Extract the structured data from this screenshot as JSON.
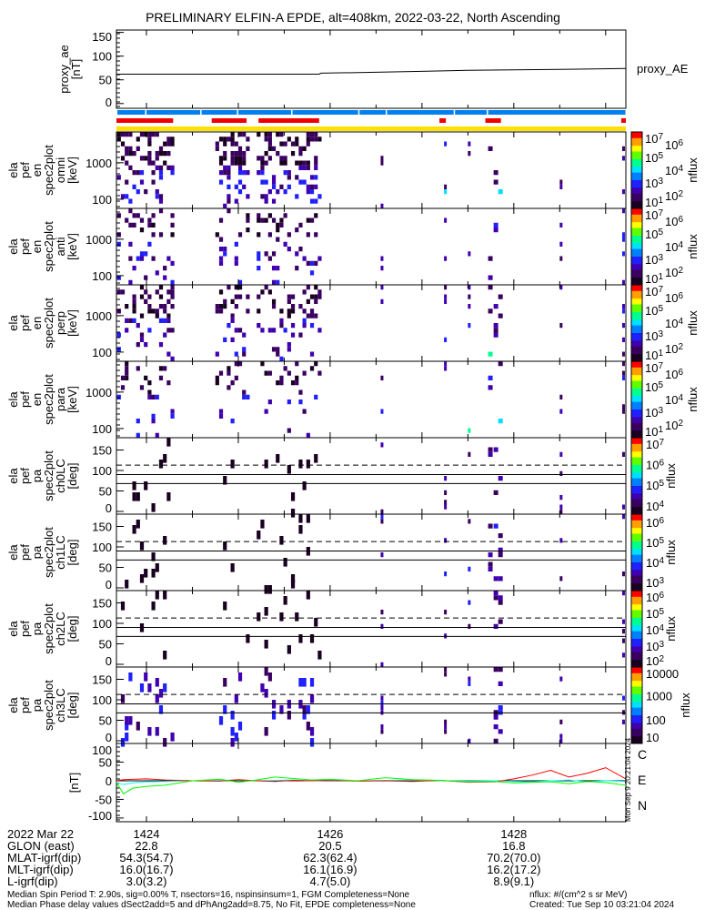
{
  "title": "PRELIMINARY ELFIN-A EPDE, alt=408km, 2022-03-22, North Ascending",
  "time_axis": {
    "t_start_min": 1423.673,
    "t_end_min": 1429.22,
    "labels": [
      "1424",
      "1426",
      "1428"
    ],
    "label_times": [
      1424,
      1426,
      1428
    ]
  },
  "chart_data": [
    {
      "type": "line",
      "name": "proxy_ae",
      "ylabel": "proxy_ae\n[nT]",
      "legend": "proxy_AE",
      "ylim": [
        -10,
        155
      ],
      "yticks": [
        "0",
        "50",
        "100",
        "150"
      ],
      "ytick_values": [
        0,
        50,
        100,
        150
      ],
      "x": [
        1423.673,
        1425.88,
        1425.9,
        1426.5,
        1427.0,
        1427.5,
        1428.0,
        1428.5,
        1429.22
      ],
      "y": [
        62,
        62,
        64,
        66,
        68,
        70,
        71,
        72,
        74
      ]
    },
    {
      "type": "bars",
      "name": "status_bars",
      "blue_gaps": [
        1423.99,
        1424.59,
        1424.99,
        1425.58,
        1426.31,
        1426.61,
        1427.35,
        1427.71
      ],
      "red_segments": [
        [
          1423.673,
          1424.29
        ],
        [
          1424.71,
          1425.09
        ],
        [
          1425.22,
          1425.88
        ],
        [
          1427.19,
          1427.26
        ],
        [
          1427.69,
          1427.86
        ],
        [
          1429.17,
          1429.22
        ]
      ],
      "yellow_segments": [
        [
          1423.673,
          1429.22
        ]
      ]
    },
    {
      "type": "heatmap",
      "name": "spec2plot omni",
      "ylabel": [
        "ela",
        "pef",
        "en",
        "spec2plot",
        "omni",
        "[keV]"
      ],
      "yscale": "log",
      "ylim": [
        56,
        7000
      ],
      "yticks": [
        "100",
        "1000"
      ],
      "ytick_values": [
        100,
        1000
      ],
      "colorbar": {
        "label": "nflux",
        "ticks": [
          "10^1",
          "10^2",
          "10^3",
          "10^4",
          "10^5",
          "10^6",
          "10^7"
        ],
        "range": [
          1,
          7
        ]
      },
      "seed": 11,
      "intensity": 1.0
    },
    {
      "type": "heatmap",
      "name": "spec2plot anti",
      "ylabel": [
        "ela",
        "pef",
        "en",
        "spec2plot",
        "anti",
        "[keV]"
      ],
      "yscale": "log",
      "ylim": [
        56,
        7000
      ],
      "yticks": [
        "100",
        "1000"
      ],
      "ytick_values": [
        100,
        1000
      ],
      "colorbar": {
        "label": "nflux",
        "ticks": [
          "10^1",
          "10^2",
          "10^3",
          "10^4",
          "10^5",
          "10^6",
          "10^7"
        ],
        "range": [
          1,
          7
        ]
      },
      "seed": 23,
      "intensity": 0.5
    },
    {
      "type": "heatmap",
      "name": "spec2plot perp",
      "ylabel": [
        "ela",
        "pef",
        "en",
        "spec2plot",
        "perp",
        "[keV]"
      ],
      "yscale": "log",
      "ylim": [
        56,
        7000
      ],
      "yticks": [
        "100",
        "1000"
      ],
      "ytick_values": [
        100,
        1000
      ],
      "colorbar": {
        "label": "nflux",
        "ticks": [
          "10^1",
          "10^2",
          "10^3",
          "10^4",
          "10^5",
          "10^6",
          "10^7"
        ],
        "range": [
          1,
          7
        ]
      },
      "seed": 37,
      "intensity": 0.8
    },
    {
      "type": "heatmap",
      "name": "spec2plot para",
      "ylabel": [
        "ela",
        "pef",
        "en",
        "spec2plot",
        "para",
        "[keV]"
      ],
      "yscale": "log",
      "ylim": [
        56,
        7000
      ],
      "yticks": [
        "100",
        "1000"
      ],
      "ytick_values": [
        100,
        1000
      ],
      "colorbar": {
        "label": "nflux",
        "ticks": [
          "10^1",
          "10^2",
          "10^3",
          "10^4",
          "10^5",
          "10^6",
          "10^7"
        ],
        "range": [
          1,
          7
        ]
      },
      "seed": 41,
      "intensity": 0.45
    },
    {
      "type": "heatmap",
      "name": "spec2plot ch0LC",
      "ylabel": [
        "ela",
        "pef",
        "pa",
        "spec2plot",
        "ch0LC",
        "[deg]"
      ],
      "yscale": "linear",
      "ylim": [
        0,
        180
      ],
      "yticks": [
        "0",
        "50",
        "100",
        "150"
      ],
      "ytick_values": [
        0,
        50,
        100,
        150
      ],
      "lines": {
        "dashed": 113,
        "solid": [
          90,
          68
        ]
      },
      "colorbar": {
        "label": "nflux",
        "ticks": [
          "10^4",
          "10^5",
          "10^6",
          "10^7"
        ],
        "range": [
          3.6,
          7.3
        ]
      },
      "seed": 53,
      "intensity": 0.3
    },
    {
      "type": "heatmap",
      "name": "spec2plot ch1LC",
      "ylabel": [
        "ela",
        "pef",
        "pa",
        "spec2plot",
        "ch1LC",
        "[deg]"
      ],
      "yscale": "linear",
      "ylim": [
        0,
        180
      ],
      "yticks": [
        "0",
        "50",
        "100",
        "150"
      ],
      "ytick_values": [
        0,
        50,
        100,
        150
      ],
      "lines": {
        "dashed": 113,
        "solid": [
          90,
          68
        ]
      },
      "colorbar": {
        "label": "nflux",
        "ticks": [
          "10^3",
          "10^4",
          "10^5",
          "10^6"
        ],
        "range": [
          2.6,
          6.4
        ]
      },
      "seed": 67,
      "intensity": 0.3
    },
    {
      "type": "heatmap",
      "name": "spec2plot ch2LC",
      "ylabel": [
        "ela",
        "pef",
        "pa",
        "spec2plot",
        "ch2LC",
        "[deg]"
      ],
      "yscale": "linear",
      "ylim": [
        0,
        180
      ],
      "yticks": [
        "0",
        "50",
        "100",
        "150"
      ],
      "ytick_values": [
        0,
        50,
        100,
        150
      ],
      "lines": {
        "dashed": 113,
        "solid": [
          90,
          68
        ]
      },
      "colorbar": {
        "label": "nflux",
        "ticks": [
          "10^2",
          "10^3",
          "10^4",
          "10^5",
          "10^6"
        ],
        "range": [
          1.7,
          6.4
        ]
      },
      "seed": 71,
      "intensity": 0.3
    },
    {
      "type": "heatmap",
      "name": "spec2plot ch3LC",
      "ylabel": [
        "ela",
        "pef",
        "pa",
        "spec2plot",
        "ch3LC",
        "[deg]"
      ],
      "yscale": "linear",
      "ylim": [
        0,
        180
      ],
      "yticks": [
        "0",
        "50",
        "100",
        "150"
      ],
      "ytick_values": [
        0,
        50,
        100,
        150
      ],
      "lines": {
        "dashed": 113,
        "solid": [
          90,
          68
        ]
      },
      "colorbar": {
        "label": "nflux",
        "ticks": [
          "10",
          "100",
          "1000",
          "10000"
        ],
        "range": [
          1,
          4.2
        ]
      },
      "seed": 83,
      "intensity": 1.0
    },
    {
      "type": "line",
      "name": "magnetic_field",
      "ylabel": "[nT]",
      "ylim": [
        -110,
        100
      ],
      "yticks": [
        "-100",
        "-50",
        "0",
        "50",
        "100"
      ],
      "ytick_values": [
        -100,
        -50,
        0,
        50,
        100
      ],
      "x": [
        1423.673,
        1423.75,
        1423.85,
        1424.0,
        1424.2,
        1424.5,
        1424.8,
        1425.0,
        1425.2,
        1425.4,
        1425.6,
        1425.8,
        1426.0,
        1426.3,
        1426.6,
        1426.9,
        1427.2,
        1427.5,
        1427.8,
        1428.0,
        1428.2,
        1428.4,
        1428.6,
        1428.8,
        1429.0,
        1429.22
      ],
      "series": [
        {
          "name": "C",
          "color": "#00ffff",
          "values": [
            -5,
            -10,
            -6,
            -3,
            -2,
            0,
            1,
            2,
            0,
            1,
            2,
            0,
            1,
            0,
            1,
            2,
            0,
            -1,
            0,
            -2,
            -3,
            0,
            2,
            -3,
            0,
            -2
          ]
        },
        {
          "name": "E",
          "color": "#ff0000",
          "values": [
            0,
            3,
            4,
            5,
            2,
            0,
            -1,
            3,
            0,
            -2,
            1,
            0,
            2,
            -1,
            0,
            -2,
            1,
            -4,
            -3,
            5,
            15,
            28,
            10,
            20,
            35,
            5
          ]
        },
        {
          "name": "N",
          "color": "#00ff00",
          "values": [
            -5,
            -35,
            -20,
            -15,
            -12,
            0,
            4,
            -4,
            2,
            10,
            6,
            2,
            4,
            0,
            8,
            3,
            1,
            -3,
            -2,
            -6,
            -4,
            -3,
            -8,
            -2,
            -5,
            -12
          ]
        }
      ]
    }
  ],
  "orbit_table": {
    "rows": [
      {
        "label": "2022 Mar 22",
        "values": [
          "1424",
          "1426",
          "1428"
        ]
      },
      {
        "label": "GLON (east)",
        "values": [
          "22.8",
          "20.5",
          "16.8"
        ]
      },
      {
        "label": "MLAT-igrf(dip)",
        "values": [
          "54.3(54.7)",
          "62.3(62.4)",
          "70.2(70.0)"
        ]
      },
      {
        "label": "MLT-igrf(dip)",
        "values": [
          "16.0(16.7)",
          "16.1(16.9)",
          "16.2(17.2)"
        ]
      },
      {
        "label": "L-igrf(dip)",
        "values": [
          "3.0(3.2)",
          "4.7(5.0)",
          "8.9(9.1)"
        ]
      }
    ]
  },
  "footer": {
    "line1": "Median Spin Period T: 2.90s, sig=0.00% T, nsectors=16, nspinsinsum=1, FGM Completeness=None",
    "line2": "Median Phase delay values dSect2add=5 and dPhAng2add=8.75, No Fit, EPDE completeness=None",
    "units": "nflux: #/(cm^2 s sr MeV)",
    "created": "Created: Tue Sep 10 03:21:04 2024",
    "side_stamp": "Mon Sep  9 20:21:04 2024"
  }
}
